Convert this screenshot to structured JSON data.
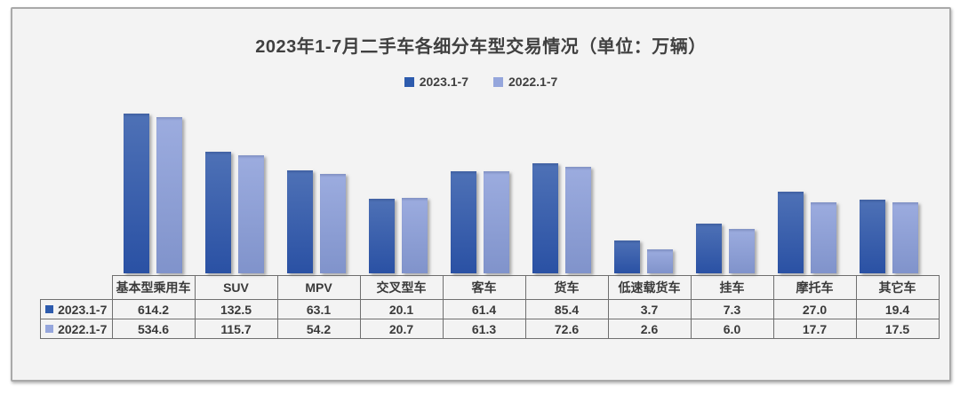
{
  "title": "2023年1-7月二手车各细分车型交易情况（单位：万辆）",
  "chart_data": {
    "type": "bar",
    "title": "2023年1-7月二手车各细分车型交易情况（单位：万辆）",
    "unit_label": "万辆",
    "legend_position": "top",
    "grid": false,
    "yaxis": {
      "scale": "log",
      "visible": false,
      "min": 1
    },
    "data_table_shown": true,
    "categories": [
      "基本型乘用车",
      "SUV",
      "MPV",
      "交叉型车",
      "客车",
      "货车",
      "低速载货车",
      "挂车",
      "摩托车",
      "其它车"
    ],
    "series": [
      {
        "name": "2023.1-7",
        "swatch_color": "#2d5bad",
        "gradient_top": "#4e71b6",
        "gradient_bottom": "#2a51a4",
        "values": [
          614.2,
          132.5,
          63.1,
          20.1,
          61.4,
          85.4,
          3.7,
          7.3,
          27.0,
          19.4
        ]
      },
      {
        "name": "2022.1-7",
        "swatch_color": "#95a6dc",
        "gradient_top": "#9cacdf",
        "gradient_bottom": "#8093cb",
        "values": [
          534.6,
          115.7,
          54.2,
          20.7,
          61.3,
          72.6,
          2.6,
          6.0,
          17.7,
          17.5
        ]
      }
    ]
  }
}
